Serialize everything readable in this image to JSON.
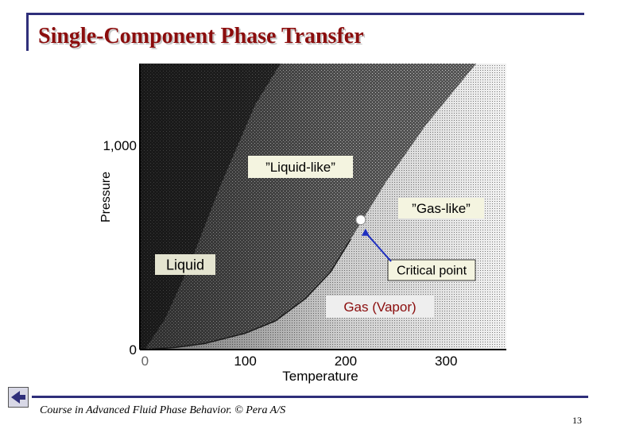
{
  "title": "Single-Component Phase Transfer",
  "footer": "Course in Advanced Fluid Phase Behavior. © Pera A/S",
  "page_number": "13",
  "colors": {
    "frame": "#2f2f7a",
    "title": "#8b0d0d",
    "arrow": "#2030c0"
  },
  "chart_data": {
    "type": "area",
    "xlabel": "Temperature",
    "ylabel": "Pressure",
    "x_ticks": [
      "0",
      "100",
      "200",
      "300"
    ],
    "y_ticks": [
      "0",
      "1,000"
    ],
    "xlim": [
      -5,
      360
    ],
    "ylim": [
      0,
      1400
    ],
    "saturation_curve": [
      {
        "x": 0,
        "y": 0
      },
      {
        "x": 30,
        "y": 10
      },
      {
        "x": 60,
        "y": 30
      },
      {
        "x": 100,
        "y": 80
      },
      {
        "x": 130,
        "y": 140
      },
      {
        "x": 160,
        "y": 250
      },
      {
        "x": 185,
        "y": 380
      },
      {
        "x": 205,
        "y": 540
      }
    ],
    "supercritical_boundary": [
      {
        "x": 205,
        "y": 540
      },
      {
        "x": 240,
        "y": 820
      },
      {
        "x": 280,
        "y": 1100
      },
      {
        "x": 330,
        "y": 1400
      }
    ],
    "critical_point": {
      "x": 215,
      "y": 635
    },
    "annotations": [
      {
        "id": "liquid_like",
        "text": "”Liquid-like”"
      },
      {
        "id": "gas_like",
        "text": "”Gas-like”"
      },
      {
        "id": "liquid",
        "text": "Liquid"
      },
      {
        "id": "critical",
        "text": "Critical point"
      },
      {
        "id": "gas",
        "text": "Gas (Vapor)"
      }
    ]
  }
}
